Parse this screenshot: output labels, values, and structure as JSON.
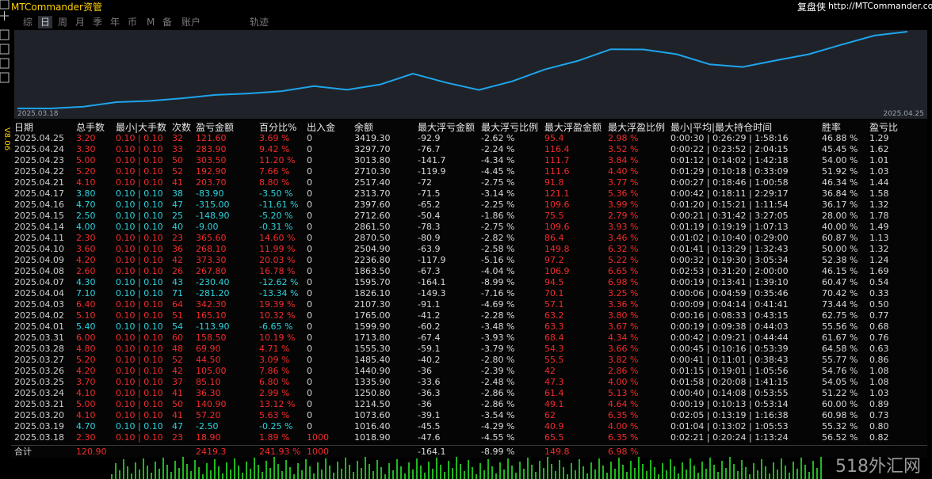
{
  "header": {
    "brand": "MTCommander资管",
    "tool": "复盘侠",
    "site": "http://MTCommander.com",
    "version": "V8.06"
  },
  "tabs": [
    "综",
    "日",
    "周",
    "月",
    "季",
    "年",
    "币",
    "M",
    "备",
    "账户",
    "轨迹"
  ],
  "selected_tab": "日",
  "chart": {
    "start_label": "2025.03.18",
    "end_label": "2025.04.25"
  },
  "table": {
    "columns": [
      "日期",
      "总手数",
      "最小|大手数",
      "次数",
      "盈亏金额",
      "百分比%",
      "出入金",
      "余额",
      "最大浮亏金额",
      "最大浮亏比例",
      "最大浮盈金额",
      "最大浮盈比例",
      "最小|平均|最大持仓时间",
      "胜率",
      "盈亏比"
    ],
    "rows": [
      [
        "2025.04.25",
        "3.20",
        "0.10 | 0.10",
        "32",
        "121.60",
        "3.69 %",
        "0",
        "3419.30",
        "-92.9",
        "-2.62 %",
        "95.4",
        "2.98 %",
        "0:00:30 | 0:26:29 | 1:58:16",
        "46.88 %",
        "1.29"
      ],
      [
        "2025.04.24",
        "3.30",
        "0.10 | 0.10",
        "33",
        "283.90",
        "9.42 %",
        "0",
        "3297.70",
        "-76.7",
        "-2.24 %",
        "116.4",
        "3.52 %",
        "0:00:22 | 0:23:52 | 2:04:15",
        "45.45 %",
        "1.62"
      ],
      [
        "2025.04.23",
        "5.00",
        "0.10 | 0.10",
        "50",
        "303.50",
        "11.20 %",
        "0",
        "3013.80",
        "-141.7",
        "-4.34 %",
        "111.7",
        "3.84 %",
        "0:01:12 | 0:14:02 | 1:42:18",
        "54.00 %",
        "1.01"
      ],
      [
        "2025.04.22",
        "5.20",
        "0.10 | 0.10",
        "52",
        "192.90",
        "7.66 %",
        "0",
        "2710.30",
        "-119.9",
        "-4.45 %",
        "111.6",
        "4.40 %",
        "0:01:29 | 0:10:18 | 0:33:09",
        "51.92 %",
        "1.03"
      ],
      [
        "2025.04.21",
        "4.10",
        "0.10 | 0.10",
        "41",
        "203.70",
        "8.80 %",
        "0",
        "2517.40",
        "-72",
        "-2.75 %",
        "91.8",
        "3.77 %",
        "0:00:27 | 0:18:46 | 1:00:58",
        "46.34 %",
        "1.44"
      ],
      [
        "2025.04.17",
        "3.80",
        "0.10 | 0.10",
        "38",
        "-83.90",
        "-3.50 %",
        "0",
        "2313.70",
        "-71.5",
        "-3.14 %",
        "121.1",
        "5.36 %",
        "0:00:42 | 0:18:11 | 2:29:17",
        "36.84 %",
        "1.58"
      ],
      [
        "2025.04.16",
        "4.70",
        "0.10 | 0.10",
        "47",
        "-315.00",
        "-11.61 %",
        "0",
        "2397.60",
        "-65.2",
        "-2.25 %",
        "109.6",
        "3.99 %",
        "0:01:20 | 0:15:21 | 1:11:54",
        "36.17 %",
        "1.32"
      ],
      [
        "2025.04.15",
        "2.50",
        "0.10 | 0.10",
        "25",
        "-148.90",
        "-5.20 %",
        "0",
        "2712.60",
        "-50.4",
        "-1.86 %",
        "75.5",
        "2.79 %",
        "0:00:21 | 0:31:42 | 3:27:05",
        "28.00 %",
        "1.78"
      ],
      [
        "2025.04.14",
        "4.00",
        "0.10 | 0.10",
        "40",
        "-9.00",
        "-0.31 %",
        "0",
        "2861.50",
        "-78.3",
        "-2.75 %",
        "109.6",
        "3.93 %",
        "0:01:19 | 0:19:19 | 1:07:13",
        "40.00 %",
        "1.49"
      ],
      [
        "2025.04.11",
        "2.30",
        "0.10 | 0.10",
        "23",
        "365.60",
        "14.60 %",
        "0",
        "2870.50",
        "-80.9",
        "-2.82 %",
        "86.4",
        "3.46 %",
        "0:01:02 | 0:10:40 | 0:29:00",
        "60.87 %",
        "1.13"
      ],
      [
        "2025.04.10",
        "3.60",
        "0.10 | 0.10",
        "36",
        "268.10",
        "11.99 %",
        "0",
        "2504.90",
        "-63.9",
        "-2.58 %",
        "149.8",
        "6.32 %",
        "0:01:41 | 0:13:29 | 1:32:43",
        "50.00 %",
        "1.32"
      ],
      [
        "2025.04.09",
        "4.20",
        "0.10 | 0.10",
        "42",
        "373.30",
        "20.03 %",
        "0",
        "2236.80",
        "-117.9",
        "-5.16 %",
        "97.2",
        "5.22 %",
        "0:00:32 | 0:19:30 | 3:05:34",
        "52.38 %",
        "1.24"
      ],
      [
        "2025.04.08",
        "2.60",
        "0.10 | 0.10",
        "26",
        "267.80",
        "16.78 %",
        "0",
        "1863.50",
        "-67.3",
        "-4.04 %",
        "106.9",
        "6.65 %",
        "0:02:53 | 0:31:20 | 2:00:00",
        "46.15 %",
        "1.69"
      ],
      [
        "2025.04.07",
        "4.30",
        "0.10 | 0.10",
        "43",
        "-230.40",
        "-12.62 %",
        "0",
        "1595.70",
        "-164.1",
        "-8.99 %",
        "94.5",
        "6.98 %",
        "0:00:19 | 0:13:41 | 1:39:10",
        "60.47 %",
        "0.54"
      ],
      [
        "2025.04.04",
        "7.10",
        "0.10 | 0.10",
        "71",
        "-281.20",
        "-13.34 %",
        "0",
        "1826.10",
        "-149.3",
        "-7.16 %",
        "70.1",
        "3.25 %",
        "0:00:06 | 0:04:59 | 0:35:46",
        "70.42 %",
        "0.33"
      ],
      [
        "2025.04.03",
        "6.40",
        "0.10 | 0.10",
        "64",
        "342.30",
        "19.39 %",
        "0",
        "2107.30",
        "-91.1",
        "-4.69 %",
        "57.1",
        "3.36 %",
        "0:00:09 | 0:04:14 | 0:41:41",
        "73.44 %",
        "0.50"
      ],
      [
        "2025.04.02",
        "5.10",
        "0.10 | 0.10",
        "51",
        "165.10",
        "10.32 %",
        "0",
        "1765.00",
        "-41.2",
        "-2.28 %",
        "63.2",
        "3.80 %",
        "0:00:16 | 0:08:33 | 0:43:15",
        "62.75 %",
        "0.77"
      ],
      [
        "2025.04.01",
        "5.40",
        "0.10 | 0.10",
        "54",
        "-113.90",
        "-6.65 %",
        "0",
        "1599.90",
        "-60.2",
        "-3.48 %",
        "63.3",
        "3.67 %",
        "0:00:19 | 0:09:38 | 0:44:03",
        "55.56 %",
        "0.68"
      ],
      [
        "2025.03.31",
        "6.00",
        "0.10 | 0.10",
        "60",
        "158.50",
        "10.19 %",
        "0",
        "1713.80",
        "-67.4",
        "-3.93 %",
        "68.4",
        "4.34 %",
        "0:00:42 | 0:09:21 | 0:44:44",
        "61.67 %",
        "0.76"
      ],
      [
        "2025.03.28",
        "4.80",
        "0.10 | 0.10",
        "48",
        "69.90",
        "4.71 %",
        "0",
        "1555.30",
        "-59.1",
        "-3.79 %",
        "54.3",
        "3.66 %",
        "0:00:45 | 0:10:16 | 0:53:39",
        "64.58 %",
        "0.63"
      ],
      [
        "2025.03.27",
        "5.20",
        "0.10 | 0.10",
        "52",
        "44.50",
        "3.09 %",
        "0",
        "1485.40",
        "-40.2",
        "-2.80 %",
        "55.5",
        "3.82 %",
        "0:00:41 | 0:11:01 | 0:38:43",
        "55.77 %",
        "0.86"
      ],
      [
        "2025.03.26",
        "4.20",
        "0.10 | 0.10",
        "42",
        "105.00",
        "7.86 %",
        "0",
        "1440.90",
        "-36",
        "-2.39 %",
        "42",
        "2.86 %",
        "0:01:15 | 0:19:01 | 1:05:56",
        "54.76 %",
        "1.08"
      ],
      [
        "2025.03.25",
        "3.70",
        "0.10 | 0.10",
        "37",
        "85.10",
        "6.80 %",
        "0",
        "1335.90",
        "-33.6",
        "-2.48 %",
        "47.3",
        "4.00 %",
        "0:01:58 | 0:20:08 | 1:41:15",
        "54.05 %",
        "1.08"
      ],
      [
        "2025.03.24",
        "4.10",
        "0.10 | 0.10",
        "41",
        "36.30",
        "2.99 %",
        "0",
        "1250.80",
        "-36.3",
        "-2.86 %",
        "61.4",
        "5.13 %",
        "0:00:40 | 0:14:08 | 0:53:55",
        "51.22 %",
        "1.03"
      ],
      [
        "2025.03.21",
        "5.00",
        "0.10 | 0.10",
        "50",
        "140.90",
        "13.12 %",
        "0",
        "1214.50",
        "-36",
        "-2.86 %",
        "49.1",
        "4.64 %",
        "0:00:19 | 0:10:13 | 0:53:14",
        "60.00 %",
        "0.89"
      ],
      [
        "2025.03.20",
        "4.10",
        "0.10 | 0.10",
        "41",
        "57.20",
        "5.63 %",
        "0",
        "1073.60",
        "-39.1",
        "-3.54 %",
        "62",
        "6.35 %",
        "0:02:05 | 0:13:19 | 1:16:38",
        "60.98 %",
        "0.73"
      ],
      [
        "2025.03.19",
        "4.70",
        "0.10 | 0.10",
        "47",
        "-2.50",
        "-0.25 %",
        "0",
        "1016.40",
        "-45.5",
        "-4.29 %",
        "40.9",
        "4.00 %",
        "0:01:04 | 0:13:02 | 1:05:53",
        "55.32 %",
        "0.80"
      ],
      [
        "2025.03.18",
        "2.30",
        "0.10 | 0.10",
        "23",
        "18.90",
        "1.89 %",
        "1000",
        "1018.90",
        "-47.6",
        "-4.55 %",
        "65.5",
        "6.35 %",
        "0:02:21 | 0:20:24 | 1:13:24",
        "56.52 %",
        "0.82"
      ]
    ],
    "total": {
      "label": "合计",
      "lots": "120.90",
      "profit": "2419.3",
      "percent": "241.93 %",
      "deposit": "1000",
      "max_float_loss": "-164.1",
      "max_float_loss_pct": "-8.99 %",
      "max_float_profit": "149.8",
      "max_float_profit_pct": "6.98 %"
    }
  },
  "watermark": "518外汇网"
}
